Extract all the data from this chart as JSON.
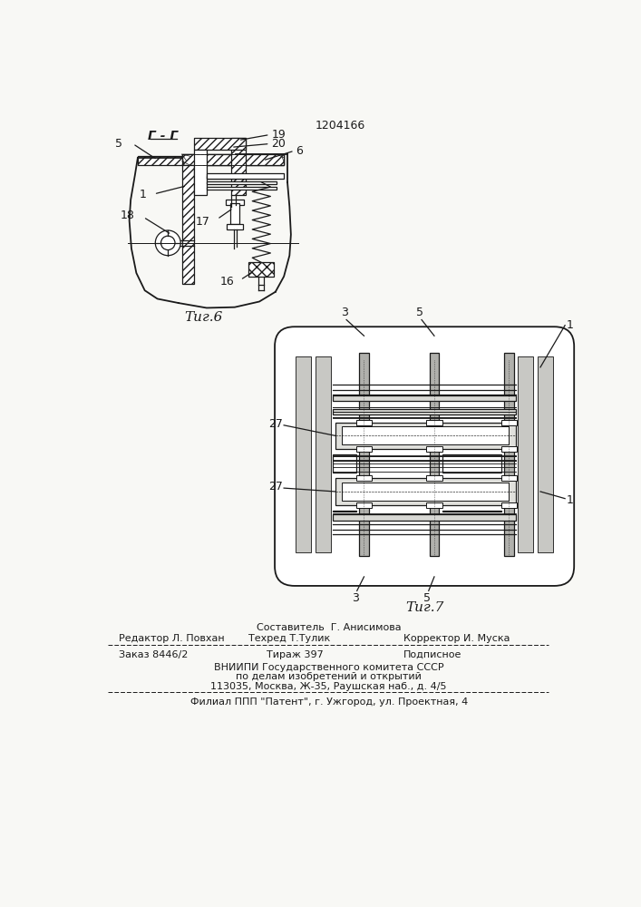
{
  "patent_number": "1204166",
  "background_color": "#f8f8f5",
  "fig6_label": "Τиг.6",
  "fig7_label": "Τиг.7",
  "section_label": "Г - Г",
  "footer": {
    "line0_center": "Составитель  Г. Анисимова",
    "line1_left": "Редактор Л. Повхан",
    "line1_center": "Техред Т.Тулик",
    "line1_right": "Корректор И. Муска",
    "line2_left": "Заказ 8446/2",
    "line2_center": "Тираж 397",
    "line2_right": "Подписное",
    "line3": "ВНИИПИ Государственного комитета СССР",
    "line4": "по делам изобретений и открытий",
    "line5": "113035, Москва, Ж-35, Раушская наб., д. 4/5",
    "line6": "Филиал ППП \"Патент\", г. Ужгород, ул. Проектная, 4"
  }
}
